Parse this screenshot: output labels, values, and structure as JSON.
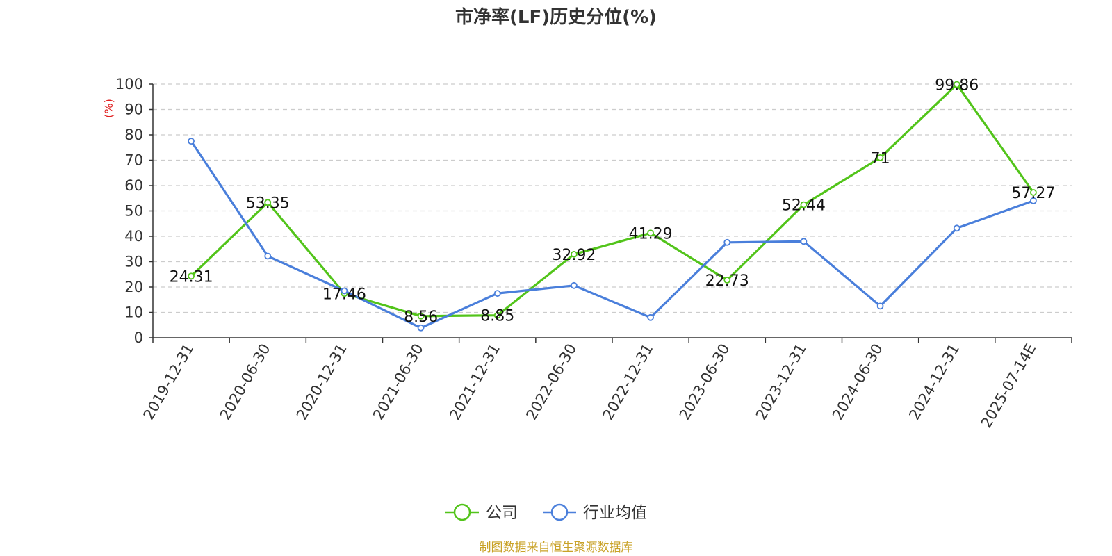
{
  "chart_data": {
    "type": "line",
    "title": "市净率(LF)历史分位(%)",
    "ylabel": "(%)",
    "ylim": [
      0,
      100
    ],
    "yticks": [
      0,
      10,
      20,
      30,
      40,
      50,
      60,
      70,
      80,
      90,
      100
    ],
    "grid": true,
    "legend_position": "bottom",
    "categories": [
      "2019-12-31",
      "2020-06-30",
      "2020-12-31",
      "2021-06-30",
      "2021-12-31",
      "2022-06-30",
      "2022-12-31",
      "2023-06-30",
      "2023-12-31",
      "2024-06-30",
      "2024-12-31",
      "2025-07-14E"
    ],
    "series": [
      {
        "name": "公司",
        "color": "#52c41a",
        "values": [
          24.31,
          53.35,
          17.46,
          8.56,
          8.85,
          32.92,
          41.29,
          22.73,
          52.44,
          71,
          99.86,
          57.27
        ],
        "labels": [
          "24.31",
          "53.35",
          "17.46",
          "8.56",
          "8.85",
          "32.92",
          "41.29",
          "22.73",
          "52.44",
          "71",
          "99.86",
          "57.27"
        ]
      },
      {
        "name": "行业均值",
        "color": "#4a7fdb",
        "values": [
          77.5,
          32.2,
          18.5,
          3.9,
          17.5,
          20.6,
          8.0,
          37.6,
          38.0,
          12.5,
          43.2,
          54.0
        ]
      }
    ],
    "source": "制图数据来自恒生聚源数据库"
  }
}
